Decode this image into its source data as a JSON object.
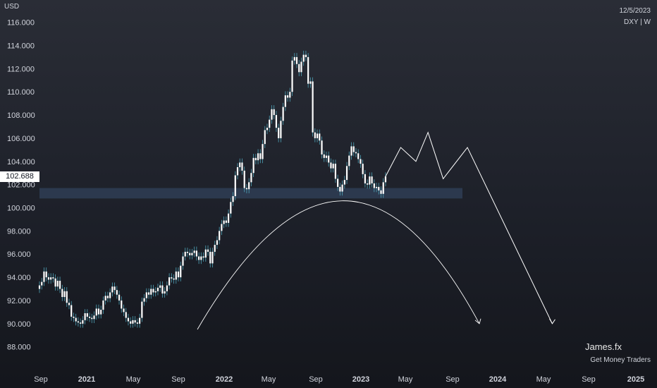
{
  "header": {
    "currency": "USD",
    "date": "12/5/2023",
    "symbol": "DXY | W",
    "current_price": "102.688"
  },
  "watermark": {
    "author": "James.fx",
    "tagline": "Get Money Traders"
  },
  "colors": {
    "candle": "#ffffff",
    "wick": "#4fa3b8",
    "zone": "#2f3d55",
    "projection": "#ffffff"
  },
  "chart_data": {
    "type": "candlestick",
    "yaxis": {
      "ticks": [
        "116.000",
        "114.000",
        "112.000",
        "110.000",
        "108.000",
        "106.000",
        "104.000",
        "102.000",
        "100.000",
        "98.000",
        "96.000",
        "94.000",
        "92.000",
        "90.000",
        "88.000"
      ],
      "range": [
        87,
        117
      ]
    },
    "xaxis": {
      "ticks": [
        {
          "label": "Sep",
          "bold": false
        },
        {
          "label": "2021",
          "bold": true
        },
        {
          "label": "May",
          "bold": false
        },
        {
          "label": "Sep",
          "bold": false
        },
        {
          "label": "2022",
          "bold": true
        },
        {
          "label": "May",
          "bold": false
        },
        {
          "label": "Sep",
          "bold": false
        },
        {
          "label": "2023",
          "bold": true
        },
        {
          "label": "May",
          "bold": false
        },
        {
          "label": "Sep",
          "bold": false
        },
        {
          "label": "2024",
          "bold": true
        },
        {
          "label": "May",
          "bold": false
        },
        {
          "label": "Sep",
          "bold": false
        },
        {
          "label": "2025",
          "bold": true
        }
      ]
    },
    "weekly_closes": [
      93.3,
      93.6,
      94.5,
      94.0,
      93.8,
      94.0,
      93.9,
      93.2,
      93.7,
      93.0,
      92.3,
      92.8,
      91.8,
      91.6,
      90.6,
      90.5,
      90.2,
      90.1,
      90.0,
      90.3,
      90.9,
      90.6,
      90.5,
      90.4,
      90.7,
      91.3,
      90.8,
      91.2,
      92.0,
      92.4,
      92.2,
      92.7,
      93.2,
      92.9,
      92.5,
      92.0,
      91.3,
      91.0,
      90.5,
      90.2,
      90.0,
      90.3,
      90.1,
      90.0,
      90.5,
      91.9,
      92.2,
      92.7,
      92.5,
      93.0,
      92.7,
      92.8,
      93.1,
      93.3,
      92.6,
      92.8,
      93.3,
      94.0,
      93.9,
      93.8,
      94.5,
      94.0,
      95.0,
      95.8,
      96.2,
      96.1,
      95.9,
      96.1,
      96.3,
      95.8,
      95.5,
      95.8,
      95.7,
      96.4,
      96.2,
      95.2,
      96.2,
      96.8,
      97.2,
      98.0,
      98.6,
      98.9,
      98.7,
      99.5,
      100.5,
      101.0,
      102.8,
      103.5,
      103.9,
      103.2,
      101.7,
      101.6,
      102.2,
      103.0,
      104.3,
      104.1,
      104.7,
      104.2,
      105.5,
      106.7,
      106.9,
      107.6,
      108.5,
      108.0,
      106.9,
      106.0,
      107.5,
      108.7,
      109.7,
      109.5,
      110.0,
      112.7,
      113.0,
      112.4,
      111.7,
      112.6,
      113.2,
      113.0,
      110.7,
      110.9,
      106.5,
      106.0,
      106.4,
      105.8,
      104.6,
      104.3,
      104.5,
      103.9,
      103.4,
      103.8,
      102.5,
      101.8,
      101.4,
      102.0,
      102.4,
      103.6,
      104.5,
      105.3,
      104.8,
      104.7,
      104.2,
      103.8,
      102.9,
      102.1,
      102.0,
      102.7,
      102.1,
      101.7,
      101.8,
      101.5,
      101.2,
      102.2,
      102.7
    ],
    "zone": {
      "from": 100.8,
      "to": 101.7
    },
    "projection_path": [
      {
        "x_index": 0,
        "price": 102.7
      },
      {
        "x_index": 5,
        "price": 105.2
      },
      {
        "x_index": 10,
        "price": 104.0
      },
      {
        "x_index": 14,
        "price": 106.5
      },
      {
        "x_index": 19,
        "price": 102.5
      },
      {
        "x_index": 27,
        "price": 105.2
      },
      {
        "x_index": 55,
        "price": 90.0
      }
    ],
    "arc": {
      "start_price": 89.5,
      "peak_price": 100.6,
      "end_price": 90.0
    }
  }
}
